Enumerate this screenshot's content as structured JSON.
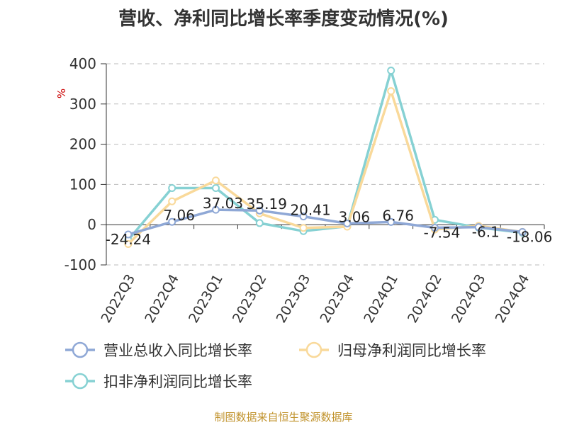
{
  "chart_data": {
    "type": "line",
    "title": "营收、净利同比增长率季度变动情况(%)",
    "ylabel": "%",
    "xlabel": "",
    "ylim": [
      -100,
      400
    ],
    "yticks": [
      400,
      300,
      200,
      100,
      0,
      -100
    ],
    "grid": true,
    "legend_position": "bottom",
    "categories": [
      "2022Q3",
      "2022Q4",
      "2023Q1",
      "2023Q2",
      "2023Q3",
      "2023Q4",
      "2024Q1",
      "2024Q2",
      "2024Q3",
      "2024Q4"
    ],
    "series": [
      {
        "name": "营业总收入同比增长率",
        "color": "#8fa8d6",
        "values": [
          -24.24,
          7.06,
          37.03,
          35.19,
          20.41,
          3.06,
          6.76,
          -7.54,
          -6.1,
          -18.06
        ],
        "labels": [
          "-24.24",
          "7.06",
          "37.03",
          "35.19",
          "20.41",
          "3.06",
          "6.76",
          "-7.54",
          "-6.1",
          "-18.06"
        ]
      },
      {
        "name": "归母净利润同比增长率",
        "color": "#f9d99a",
        "values": [
          -48,
          58,
          110,
          28,
          -8,
          -5,
          332,
          -12,
          -3,
          -18
        ]
      },
      {
        "name": "扣非净利润同比增长率",
        "color": "#86d1d3",
        "values": [
          -38,
          91,
          91,
          4,
          -16,
          -4,
          383,
          12,
          -7,
          -20
        ]
      }
    ]
  },
  "source_note": "制图数据来自恒生聚源数据库"
}
